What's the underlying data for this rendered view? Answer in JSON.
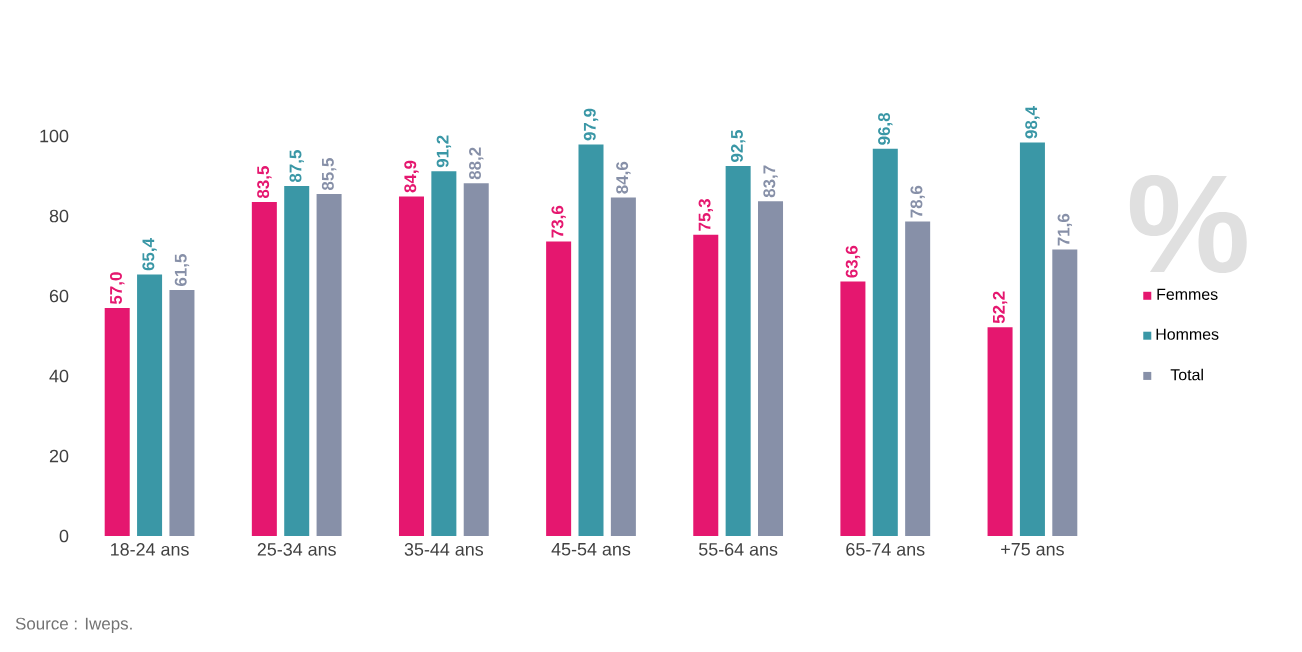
{
  "chart_data": {
    "type": "bar",
    "categories": [
      "18-24 ans",
      "25-34 ans",
      "35-44 ans",
      "45-54 ans",
      "55-64 ans",
      "65-74 ans",
      "+75 ans"
    ],
    "series": [
      {
        "name": "Femmes",
        "color": "#e5176f",
        "values": [
          57.0,
          83.5,
          84.9,
          73.6,
          75.3,
          63.6,
          52.2
        ],
        "value_labels": [
          "57,0",
          "83,5",
          "84,9",
          "73,6",
          "75,3",
          "63,6",
          "52,2"
        ]
      },
      {
        "name": "Hommes",
        "color": "#3a97a6",
        "values": [
          65.4,
          87.5,
          91.2,
          97.9,
          92.5,
          96.8,
          98.4
        ],
        "value_labels": [
          "65,4",
          "87,5",
          "91,2",
          "97,9",
          "92,5",
          "96,8",
          "98,4"
        ]
      },
      {
        "name": "Total",
        "color": "#8790a8",
        "values": [
          61.5,
          85.5,
          88.2,
          84.6,
          83.7,
          78.6,
          71.6
        ],
        "value_labels": [
          "61,5",
          "85,5",
          "88,2",
          "84,6",
          "83,7",
          "78,6",
          "71,6"
        ]
      }
    ],
    "ylabel": "%",
    "ylim": [
      0,
      100
    ],
    "yticks": [
      0,
      20,
      40,
      60,
      80,
      100
    ],
    "grid": false,
    "legend": "right",
    "annotations": [
      "Source : Iweps."
    ]
  }
}
